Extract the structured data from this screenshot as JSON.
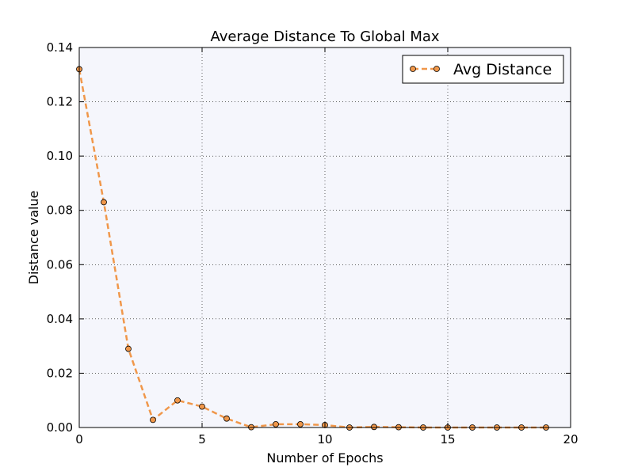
{
  "chart_data": {
    "type": "line",
    "title": "Average Distance To Global Max",
    "xlabel": "Number of Epochs",
    "ylabel": "Distance value",
    "xlim": [
      0,
      20
    ],
    "ylim": [
      0,
      0.14
    ],
    "xticks": [
      0,
      5,
      10,
      15,
      20
    ],
    "yticks": [
      0.0,
      0.02,
      0.04,
      0.06,
      0.08,
      0.1,
      0.12,
      0.14
    ],
    "xtick_labels": [
      "0",
      "5",
      "10",
      "15",
      "20"
    ],
    "ytick_labels": [
      "0.00",
      "0.02",
      "0.04",
      "0.06",
      "0.08",
      "0.10",
      "0.12",
      "0.14"
    ],
    "grid": true,
    "legend_position": "top-right",
    "series": [
      {
        "name": "Avg Distance",
        "color": "#f0974a",
        "marker_color": "#f0974a",
        "line_style": "dashed",
        "x": [
          0,
          1,
          2,
          3,
          4,
          5,
          6,
          7,
          8,
          9,
          10,
          11,
          12,
          13,
          14,
          15,
          16,
          17,
          18,
          19
        ],
        "y": [
          0.132,
          0.083,
          0.029,
          0.0028,
          0.01,
          0.0077,
          0.0033,
          0.0001,
          0.0012,
          0.0012,
          0.0009,
          0.0,
          0.0002,
          0.0001,
          0.0,
          0.0,
          0.0,
          0.0,
          0.0,
          0.0
        ]
      }
    ]
  }
}
